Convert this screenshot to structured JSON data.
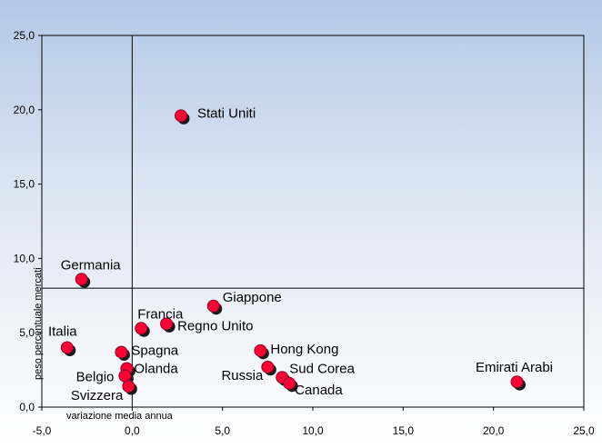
{
  "chart_data": {
    "type": "scatter",
    "xlabel": "variazione media annua",
    "ylabel": "peso percentuale mercati",
    "xlim": [
      -5,
      25
    ],
    "ylim": [
      0,
      25
    ],
    "x_ticks": [
      "-5,0",
      "0,0",
      "5,0",
      "10,0",
      "15,0",
      "20,0",
      "25,0"
    ],
    "y_ticks": [
      "0,0",
      "5,0",
      "10,0",
      "15,0",
      "20,0",
      "25,0"
    ],
    "reference_lines": {
      "x": 0,
      "y": 8.0
    },
    "marker_color": "#ff0033",
    "marker_shadow_color": "#1a1a1a",
    "points": [
      {
        "label": "Stati Uniti",
        "x": 2.7,
        "y": 19.6
      },
      {
        "label": "Germania",
        "x": -2.8,
        "y": 8.6
      },
      {
        "label": "Giappone",
        "x": 4.5,
        "y": 6.8
      },
      {
        "label": "Francia",
        "x": 0.5,
        "y": 5.3
      },
      {
        "label": "Regno Unito",
        "x": 1.9,
        "y": 5.6
      },
      {
        "label": "Italia",
        "x": -3.6,
        "y": 4.0
      },
      {
        "label": "Spagna",
        "x": -0.6,
        "y": 3.7
      },
      {
        "label": "Olanda",
        "x": -0.3,
        "y": 2.6
      },
      {
        "label": "Belgio",
        "x": -0.4,
        "y": 2.1
      },
      {
        "label": "Svizzera",
        "x": -0.2,
        "y": 1.4
      },
      {
        "label": "Hong Kong",
        "x": 7.1,
        "y": 3.8
      },
      {
        "label": "Russia",
        "x": 7.5,
        "y": 2.7
      },
      {
        "label": "Sud Corea",
        "x": 8.3,
        "y": 2.0
      },
      {
        "label": "Canada",
        "x": 8.7,
        "y": 1.6
      },
      {
        "label": "Emirati Arabi",
        "x": 21.3,
        "y": 1.7
      }
    ]
  }
}
